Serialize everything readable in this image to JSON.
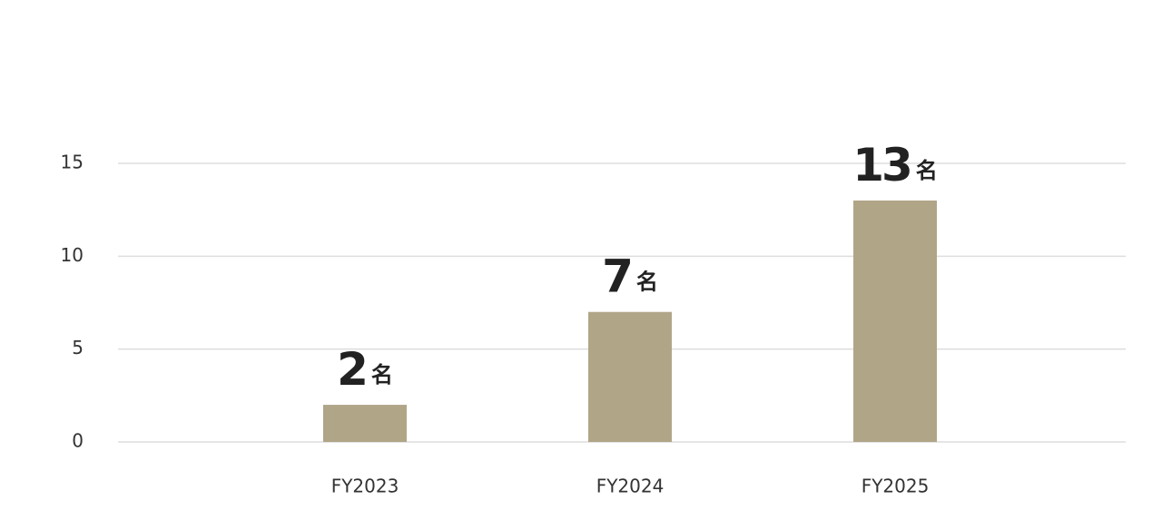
{
  "chart_data": {
    "type": "bar",
    "categories": [
      "FY2023",
      "FY2024",
      "FY2025"
    ],
    "values": [
      2,
      7,
      13
    ],
    "value_labels": [
      "2名",
      "7名",
      "13名"
    ],
    "color": "#b0a587",
    "ylim": [
      0,
      15
    ],
    "yticks": [
      0,
      5,
      10,
      15
    ],
    "grid": true
  }
}
